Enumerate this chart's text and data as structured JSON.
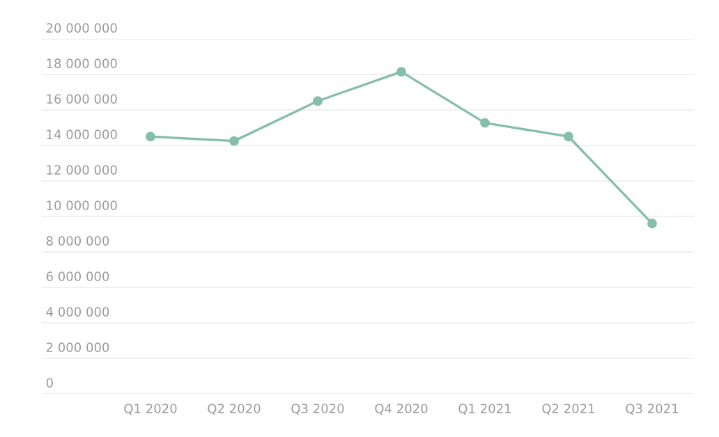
{
  "chart_data": {
    "type": "line",
    "categories": [
      "Q1 2020",
      "Q2 2020",
      "Q3 2020",
      "Q4 2020",
      "Q1 2021",
      "Q2 2021",
      "Q3 2021"
    ],
    "series": [
      {
        "color": "#86bfa9",
        "values": [
          14500000,
          14250000,
          16500000,
          18150000,
          15270000,
          14500000,
          9600000
        ]
      }
    ],
    "ylim": [
      0,
      20000000
    ],
    "yticks": [
      {
        "value": 0,
        "label": "0"
      },
      {
        "value": 2000000,
        "label": "2 000 000"
      },
      {
        "value": 4000000,
        "label": "4 000 000"
      },
      {
        "value": 6000000,
        "label": "6 000 000"
      },
      {
        "value": 8000000,
        "label": "8 000 000"
      },
      {
        "value": 10000000,
        "label": "10 000 000"
      },
      {
        "value": 12000000,
        "label": "12 000 000"
      },
      {
        "value": 14000000,
        "label": "14 000 000"
      },
      {
        "value": 16000000,
        "label": "16 000 000"
      },
      {
        "value": 18000000,
        "label": "18 000 000"
      },
      {
        "value": 20000000,
        "label": "20 000 000"
      }
    ],
    "grid": "y",
    "marker": "circle",
    "line_style": "solid"
  }
}
